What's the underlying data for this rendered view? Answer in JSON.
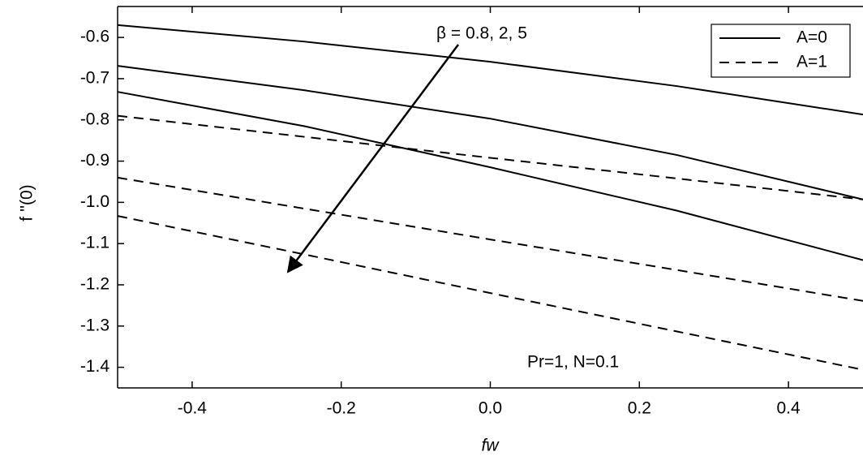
{
  "chart_data": {
    "type": "line",
    "x_label": "fw",
    "y_label": "f ''(0)",
    "x": [
      -0.5,
      -0.25,
      0,
      0.25,
      0.5
    ],
    "series": [
      {
        "color": "#000000",
        "dash": "solid",
        "values": [
          -0.57,
          -0.61,
          -0.659,
          -0.718,
          -0.787
        ]
      },
      {
        "color": "#000000",
        "dash": "solid",
        "values": [
          -0.669,
          -0.728,
          -0.797,
          -0.885,
          -0.993
        ]
      },
      {
        "color": "#000000",
        "dash": "solid",
        "values": [
          -0.732,
          -0.815,
          -0.915,
          -1.02,
          -1.14
        ]
      },
      {
        "color": "#000000",
        "dash": "dashed",
        "values": [
          -0.79,
          -0.841,
          -0.892,
          -0.942,
          -0.993
        ]
      },
      {
        "color": "#000000",
        "dash": "dashed",
        "values": [
          -0.94,
          -1.015,
          -1.09,
          -1.164,
          -1.239
        ]
      },
      {
        "color": "#000000",
        "dash": "dashed",
        "values": [
          -1.033,
          -1.126,
          -1.22,
          -1.313,
          -1.406
        ]
      }
    ],
    "legend": [
      {
        "label": "A=0",
        "dash": "solid"
      },
      {
        "label": "A=1",
        "dash": "dashed"
      }
    ],
    "annotations": [
      "β = 0.8, 2, 5",
      "Pr=1, N=0.1"
    ],
    "xlim": [
      -0.5,
      0.5
    ],
    "ylim": [
      -1.45,
      -0.525
    ],
    "xticks": [
      -0.4,
      -0.2,
      {
        "value": 0,
        "label": "0.0"
      },
      0.2,
      0.4
    ],
    "yticks": [
      -0.6,
      -0.7,
      -0.8,
      -0.9,
      {
        "value": -1,
        "label": "-1.0"
      },
      -1.1,
      -1.2,
      -1.3,
      -1.4
    ]
  }
}
